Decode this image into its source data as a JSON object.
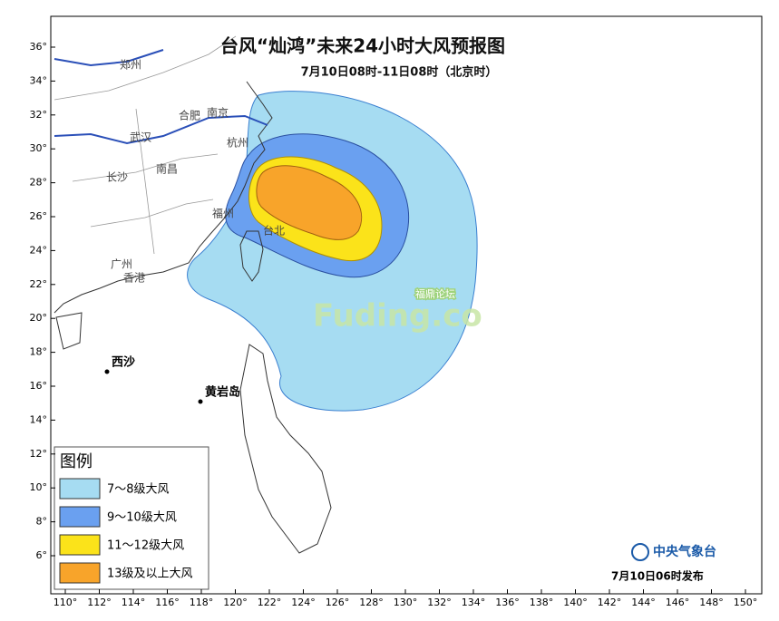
{
  "title": "台风“灿鸿”未来24小时大风预报图",
  "subtitle": "7月10日08时-11日08时（北京时）",
  "map": {
    "lon_ticks": [
      {
        "value": 110,
        "label": "110°"
      },
      {
        "value": 112,
        "label": "112°"
      },
      {
        "value": 114,
        "label": "114°"
      },
      {
        "value": 116,
        "label": "116°"
      },
      {
        "value": 118,
        "label": "118°"
      },
      {
        "value": 120,
        "label": "120°"
      },
      {
        "value": 122,
        "label": "122°"
      },
      {
        "value": 124,
        "label": "124°"
      },
      {
        "value": 126,
        "label": "126°"
      },
      {
        "value": 128,
        "label": "128°"
      },
      {
        "value": 130,
        "label": "130°"
      },
      {
        "value": 132,
        "label": "132°"
      },
      {
        "value": 134,
        "label": "134°"
      },
      {
        "value": 136,
        "label": "136°"
      },
      {
        "value": 138,
        "label": "138°"
      },
      {
        "value": 140,
        "label": "140°"
      },
      {
        "value": 142,
        "label": "142°"
      },
      {
        "value": 144,
        "label": "144°"
      },
      {
        "value": 146,
        "label": "146°"
      },
      {
        "value": 148,
        "label": "148°"
      },
      {
        "value": 150,
        "label": "150°"
      }
    ],
    "lat_ticks": [
      {
        "value": 36,
        "label": "36°"
      },
      {
        "value": 34,
        "label": "34°"
      },
      {
        "value": 32,
        "label": "32°"
      },
      {
        "value": 30,
        "label": "30°"
      },
      {
        "value": 28,
        "label": "28°"
      },
      {
        "value": 26,
        "label": "26°"
      },
      {
        "value": 24,
        "label": "24°"
      },
      {
        "value": 22,
        "label": "22°"
      },
      {
        "value": 20,
        "label": "20°"
      },
      {
        "value": 18,
        "label": "18°"
      },
      {
        "value": 16,
        "label": "16°"
      },
      {
        "value": 14,
        "label": "14°"
      },
      {
        "value": 12,
        "label": "12°"
      },
      {
        "value": 10,
        "label": "10°"
      },
      {
        "value": 8,
        "label": "8°"
      },
      {
        "value": 6,
        "label": "6°"
      }
    ],
    "places": [
      "郑州",
      "合肥",
      "南京",
      "武汉",
      "杭州",
      "长沙",
      "南昌",
      "福州",
      "台北",
      "广州",
      "香港",
      "西沙",
      "黄岩岛"
    ]
  },
  "legend": {
    "title": "图例",
    "items": [
      {
        "label": "7～8级大风",
        "color": "#a6dcf2"
      },
      {
        "label": "9～10级大风",
        "color": "#6aa0f0"
      },
      {
        "label": "11～12级大风",
        "color": "#fbe31a"
      },
      {
        "label": "13级及以上大风",
        "color": "#f8a42a"
      }
    ]
  },
  "watermark": {
    "brand": "福鼎论坛",
    "site": "Fuding.co"
  },
  "footer": {
    "agency": "中央气象台",
    "issued": "7月10日06时发布"
  }
}
